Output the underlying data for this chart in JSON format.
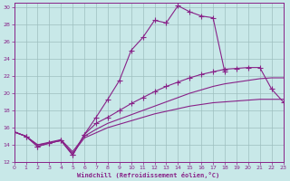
{
  "xlabel": "Windchill (Refroidissement éolien,°C)",
  "bg_color": "#c8e8e8",
  "grid_color": "#9dbfbf",
  "line_color": "#882288",
  "xlim": [
    0,
    23
  ],
  "ylim": [
    12,
    30.5
  ],
  "xticks": [
    0,
    1,
    2,
    3,
    4,
    5,
    6,
    7,
    8,
    9,
    10,
    11,
    12,
    13,
    14,
    15,
    16,
    17,
    18,
    19,
    20,
    21,
    22,
    23
  ],
  "yticks": [
    12,
    14,
    16,
    18,
    20,
    22,
    24,
    26,
    28,
    30
  ],
  "curves": [
    {
      "x": [
        0,
        1,
        2,
        3,
        4,
        5,
        6,
        7,
        8,
        9,
        10,
        11,
        12,
        13,
        14,
        15,
        16,
        17,
        18,
        19,
        20,
        21,
        22,
        23
      ],
      "y": [
        15.5,
        15.0,
        13.8,
        14.2,
        14.5,
        12.8,
        15.2,
        17.2,
        19.3,
        21.5,
        25.0,
        26.5,
        28.5,
        28.2,
        30.2,
        29.5,
        29.0,
        28.8,
        22.5,
        null,
        null,
        null,
        null,
        null
      ],
      "has_markers": true
    },
    {
      "x": [
        0,
        1,
        2,
        3,
        4,
        5,
        6,
        7,
        8,
        9,
        10,
        11,
        12,
        13,
        14,
        15,
        16,
        17,
        18,
        19,
        20,
        21,
        22,
        23
      ],
      "y": [
        15.5,
        15.0,
        13.8,
        14.2,
        14.5,
        12.8,
        15.2,
        16.5,
        17.2,
        18.0,
        18.8,
        19.5,
        20.2,
        20.8,
        21.3,
        21.8,
        22.2,
        22.5,
        22.8,
        22.9,
        23.0,
        23.0,
        20.5,
        19.0
      ],
      "has_markers": true
    },
    {
      "x": [
        0,
        1,
        2,
        3,
        4,
        5,
        6,
        7,
        8,
        9,
        10,
        11,
        12,
        13,
        14,
        15,
        16,
        17,
        18,
        19,
        20,
        21,
        22,
        23
      ],
      "y": [
        15.5,
        15.0,
        14.0,
        14.3,
        14.6,
        13.2,
        15.0,
        15.8,
        16.5,
        17.0,
        17.5,
        18.0,
        18.5,
        19.0,
        19.5,
        20.0,
        20.4,
        20.8,
        21.1,
        21.3,
        21.5,
        21.7,
        21.8,
        21.8
      ],
      "has_markers": false
    },
    {
      "x": [
        0,
        1,
        2,
        3,
        4,
        5,
        6,
        7,
        8,
        9,
        10,
        11,
        12,
        13,
        14,
        15,
        16,
        17,
        18,
        19,
        20,
        21,
        22,
        23
      ],
      "y": [
        15.5,
        15.0,
        14.0,
        14.2,
        14.5,
        13.0,
        14.8,
        15.4,
        16.0,
        16.4,
        16.8,
        17.2,
        17.6,
        17.9,
        18.2,
        18.5,
        18.7,
        18.9,
        19.0,
        19.1,
        19.2,
        19.3,
        19.3,
        19.3
      ],
      "has_markers": false
    }
  ]
}
